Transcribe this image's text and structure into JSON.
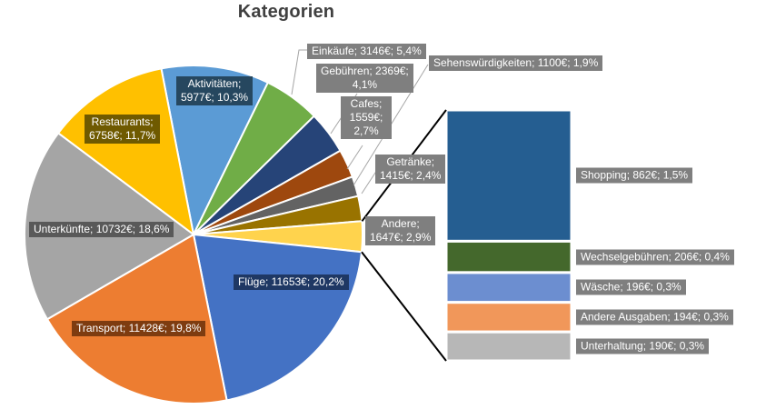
{
  "title": "Kategorien",
  "chart_data": {
    "type": "pie",
    "variant": "bar-of-pie",
    "title": "Kategorien",
    "unit": "€",
    "legend": "none",
    "start_angle_deg": -11,
    "label_bg_outside": "#7F7F7F",
    "pie_slices": [
      {
        "name": "Aktivitäten",
        "value": 5977,
        "pct": 10.3,
        "label": "Aktivitäten;\n5977€; 10,3%",
        "color": "#5B9BD5",
        "label_bg": "#26475F"
      },
      {
        "name": "Einkäufe",
        "value": 3146,
        "pct": 5.4,
        "label": "Einkäufe; 3146€; 5,4%",
        "color": "#70AD47",
        "label_bg": "#7F7F7F"
      },
      {
        "name": "Gebühren",
        "value": 2369,
        "pct": 4.1,
        "label": "Gebühren; 2369€;\n4,1%",
        "color": "#264478",
        "label_bg": "#7F7F7F"
      },
      {
        "name": "Cafes",
        "value": 1559,
        "pct": 2.7,
        "label": "Cafes;\n1559€;\n2,7%",
        "color": "#9E480E",
        "label_bg": "#7F7F7F"
      },
      {
        "name": "Sehenswürdigkeiten",
        "value": 1100,
        "pct": 1.9,
        "label": "Sehenswürdigkeiten; 1100€; 1,9%",
        "color": "#636363",
        "label_bg": "#7F7F7F"
      },
      {
        "name": "Getränke",
        "value": 1415,
        "pct": 2.4,
        "label": "Getränke;\n1415€; 2,4%",
        "color": "#997300",
        "label_bg": "#7F7F7F"
      },
      {
        "name": "Andere",
        "value": 1647,
        "pct": 2.9,
        "label": "Andere;\n1647€; 2,9%",
        "color": "#FFD34D",
        "label_bg": "#7F7F7F"
      },
      {
        "name": "Flüge",
        "value": 11653,
        "pct": 20.2,
        "label": "Flüge; 11653€; 20,2%",
        "color": "#4472C4",
        "label_bg": "#1F3864"
      },
      {
        "name": "Transport",
        "value": 11428,
        "pct": 19.8,
        "label": "Transport; 11428€; 19,8%",
        "color": "#ED7D31",
        "label_bg": "#7E3C10"
      },
      {
        "name": "Unterkünfte",
        "value": 10732,
        "pct": 18.6,
        "label": "Unterkünfte; 10732€; 18,6%",
        "color": "#A5A5A5",
        "label_bg": "#595959"
      },
      {
        "name": "Restaurants",
        "value": 6758,
        "pct": 11.7,
        "label": "Restaurants;\n6758€; 11,7%",
        "color": "#FFC000",
        "label_bg": "#6F5A00"
      }
    ],
    "bar_segments": [
      {
        "name": "Shopping",
        "value": 862,
        "pct": 1.5,
        "label": "Shopping; 862€; 1,5%",
        "color": "#255E91"
      },
      {
        "name": "Wechselgebühren",
        "value": 206,
        "pct": 0.4,
        "label": "Wechselgebühren; 206€; 0,4%",
        "color": "#44682C"
      },
      {
        "name": "Wäsche",
        "value": 196,
        "pct": 0.3,
        "label": "Wäsche; 196€; 0,3%",
        "color": "#6C8ED0"
      },
      {
        "name": "Andere Ausgaben",
        "value": 194,
        "pct": 0.3,
        "label": "Andere Ausgaben; 194€; 0,3%",
        "color": "#F1975A"
      },
      {
        "name": "Unterhaltung",
        "value": 190,
        "pct": 0.3,
        "label": "Unterhaltung; 190€; 0,3%",
        "color": "#B7B7B7"
      }
    ]
  }
}
